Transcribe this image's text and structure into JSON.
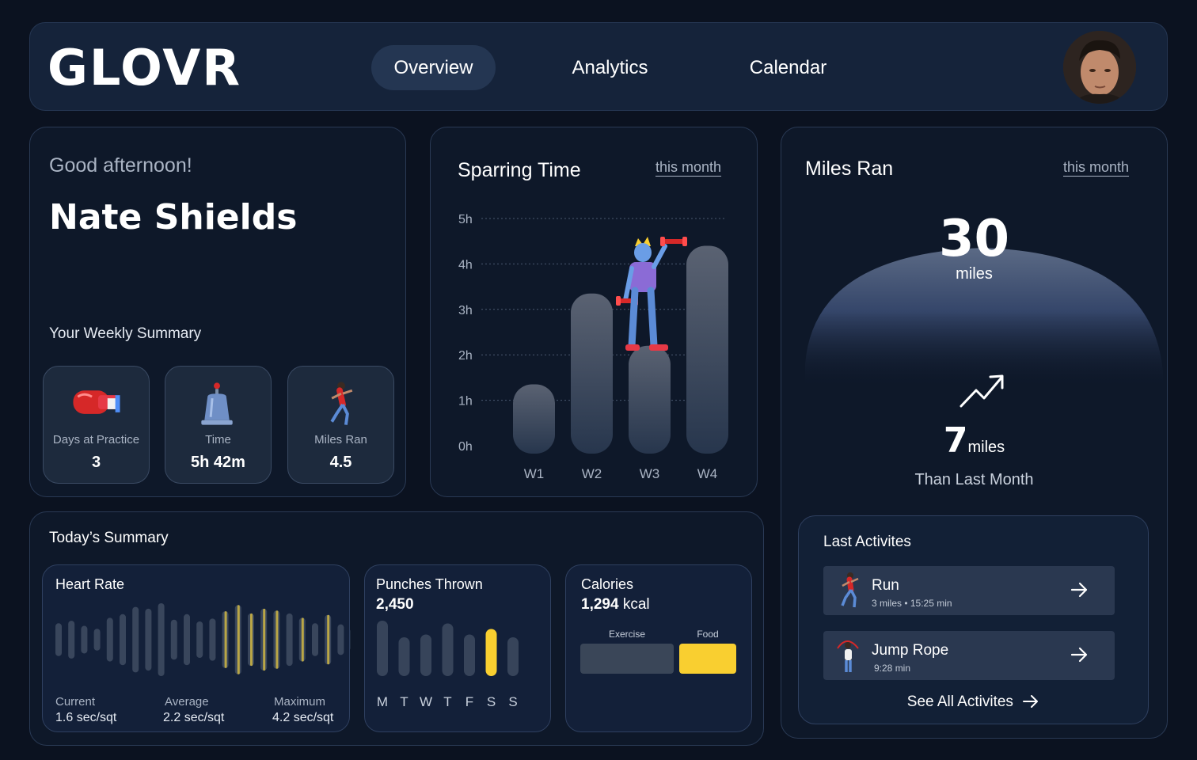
{
  "header": {
    "logo": "GLOVR",
    "tabs": [
      {
        "label": "Overview",
        "active": true
      },
      {
        "label": "Analytics",
        "active": false
      },
      {
        "label": "Calendar",
        "active": false
      }
    ]
  },
  "welcome": {
    "greeting": "Good afternoon!",
    "name": "Nate Shields",
    "weekly_title": "Your Weekly Summary",
    "stats": [
      {
        "label": "Days at Practice",
        "value": "3",
        "icon": "boxing-glove-icon"
      },
      {
        "label": "Time",
        "value": "5h 42m",
        "icon": "bell-icon"
      },
      {
        "label": "Miles Ran",
        "value": "4.5",
        "icon": "runner-icon"
      }
    ]
  },
  "sparring": {
    "title": "Sparring Time",
    "period": "this month",
    "chart_data": {
      "type": "bar",
      "categories": [
        "W1",
        "W2",
        "W3",
        "W4"
      ],
      "values": [
        1.35,
        3.35,
        2.2,
        4.4
      ],
      "y_ticks": [
        "5h",
        "4h",
        "3h",
        "2h",
        "1h",
        "0h"
      ],
      "ylim": [
        0,
        5
      ],
      "grid": true
    }
  },
  "miles": {
    "title": "Miles Ran",
    "period": "this month",
    "total": "30",
    "unit": "miles",
    "delta": "7",
    "delta_unit": "miles",
    "delta_caption": "Than Last Month"
  },
  "today": {
    "title": "Today’s Summary",
    "heart_rate": {
      "title": "Heart Rate",
      "current_label": "Current",
      "current_value": "1.6 sec/sqt",
      "average_label": "Average",
      "average_value": "2.2 sec/sqt",
      "maximum_label": "Maximum",
      "maximum_value": "4.2 sec/sqt",
      "wave": [
        0.45,
        0.52,
        0.38,
        0.3,
        0.6,
        0.7,
        0.9,
        0.85,
        1.0,
        0.55,
        0.7,
        0.5,
        0.58,
        0.78,
        0.95,
        0.72,
        0.85,
        0.8,
        0.72,
        0.6,
        0.45,
        0.68,
        0.42,
        0.32,
        0.38,
        0.45
      ]
    },
    "punches": {
      "title": "Punches Thrown",
      "value": "2,450",
      "days": [
        "M",
        "T",
        "W",
        "T",
        "F",
        "S",
        "S"
      ],
      "levels": [
        1.0,
        0.7,
        0.75,
        0.95,
        0.75,
        0.85,
        0.7
      ],
      "highlight_index": 5
    },
    "calories": {
      "title": "Calories",
      "value": "1,294",
      "unit": "kcal",
      "exercise_label": "Exercise",
      "food_label": "Food"
    }
  },
  "activities": {
    "title": "Last Activites",
    "items": [
      {
        "name": "Run",
        "meta": "3 miles • 15:25 min",
        "icon": "runner-icon"
      },
      {
        "name": "Jump Rope",
        "meta": "9:28 min",
        "icon": "jump-rope-icon"
      }
    ],
    "see_all": "See All Activites"
  },
  "colors": {
    "accent": "#f9cf30",
    "bar": "#4a5568",
    "panel": "#0e1829"
  }
}
